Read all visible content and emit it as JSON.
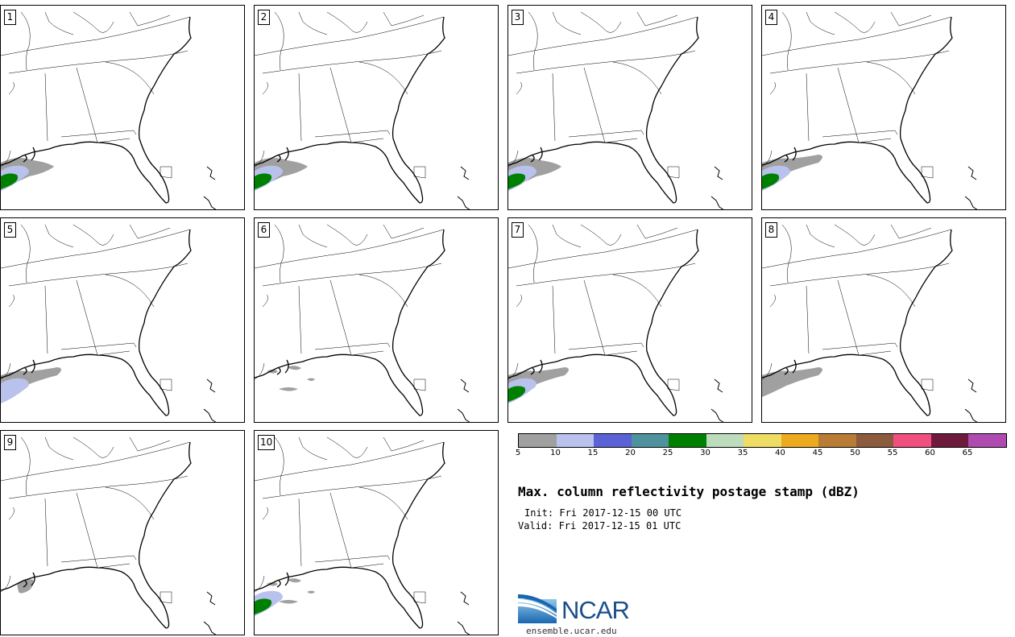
{
  "panels": [
    {
      "label": "1",
      "blobs": [
        "gray-large",
        "light-blue",
        "green"
      ]
    },
    {
      "label": "2",
      "blobs": [
        "gray-large",
        "light-blue",
        "green"
      ]
    },
    {
      "label": "3",
      "blobs": [
        "gray-large",
        "light-blue",
        "green"
      ]
    },
    {
      "label": "4",
      "blobs": [
        "gray-medium",
        "light-blue",
        "green"
      ]
    },
    {
      "label": "5",
      "blobs": [
        "gray-medium",
        "light-blue"
      ]
    },
    {
      "label": "6",
      "blobs": [
        "gray-scattered"
      ]
    },
    {
      "label": "7",
      "blobs": [
        "gray-medium",
        "light-blue",
        "green"
      ]
    },
    {
      "label": "8",
      "blobs": [
        "gray-medium"
      ]
    },
    {
      "label": "9",
      "blobs": [
        "gray-small"
      ]
    },
    {
      "label": "10",
      "blobs": [
        "gray-scattered",
        "light-blue",
        "green"
      ]
    }
  ],
  "colorbar": {
    "colors": [
      "#a0a0a0",
      "#b8c2ec",
      "#5a62d6",
      "#4e929e",
      "#008000",
      "#bcdcbc",
      "#eedc64",
      "#eeaa1e",
      "#b87c34",
      "#8c5a3c",
      "#f05080",
      "#6e1a3c",
      "#ae4ab0"
    ],
    "labels": [
      "5",
      "10",
      "15",
      "20",
      "25",
      "30",
      "35",
      "40",
      "45",
      "50",
      "55",
      "60",
      "65"
    ]
  },
  "title": "Max. column reflectivity postage stamp (dBZ)",
  "init": "Init: Fri 2017-12-15 00 UTC",
  "valid": "Valid: Fri 2017-12-15 01 UTC",
  "logo": {
    "text": "NCAR",
    "url": "ensemble.ucar.edu"
  }
}
